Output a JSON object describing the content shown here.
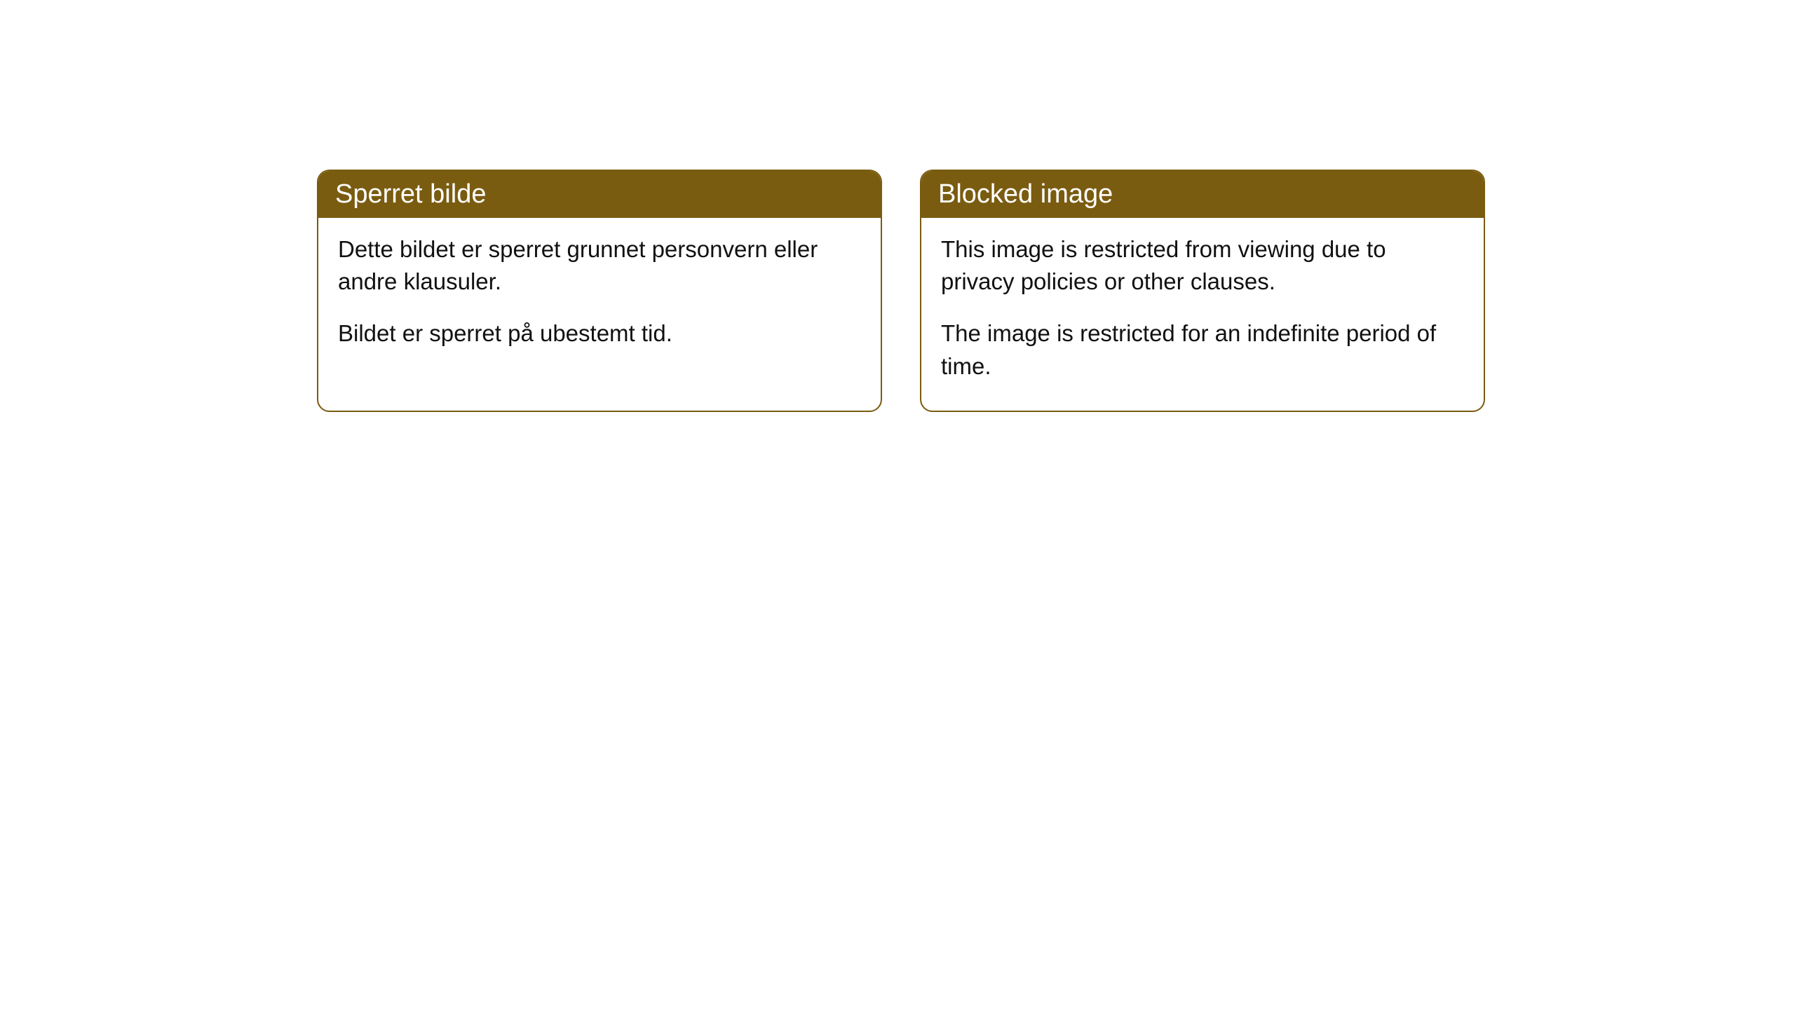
{
  "cards": [
    {
      "title": "Sperret bilde",
      "paragraph1": "Dette bildet er sperret grunnet personvern eller andre klausuler.",
      "paragraph2": "Bildet er sperret på ubestemt tid."
    },
    {
      "title": "Blocked image",
      "paragraph1": "This image is restricted from viewing due to privacy policies or other clauses.",
      "paragraph2": "The image is restricted for an indefinite period of time."
    }
  ],
  "style": {
    "header_bg_color": "#7a5c10",
    "header_text_color": "#ffffff",
    "border_color": "#7a5c10",
    "body_bg_color": "#ffffff",
    "body_text_color": "#111111",
    "border_radius": 18,
    "title_fontsize": 38,
    "body_fontsize": 33
  }
}
